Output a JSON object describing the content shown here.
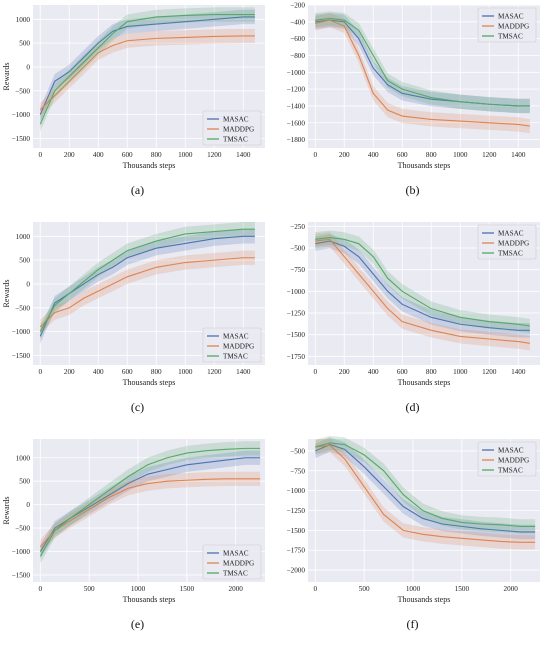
{
  "colors": {
    "MASAC": "#4c72b0",
    "MADDPG": "#dd8452",
    "TMSAC": "#55a868",
    "plot_bg": "#eaeaf2",
    "grid": "#ffffff"
  },
  "chart_data": [
    {
      "type": "line",
      "caption": "(a)",
      "xlabel": "Thousands steps",
      "ylabel": "Rewards",
      "xlim": [
        -50,
        1550
      ],
      "ylim": [
        -1700,
        1300
      ],
      "xticks": [
        0,
        200,
        400,
        600,
        800,
        1000,
        1200,
        1400
      ],
      "yticks": [
        -1500,
        -1000,
        -500,
        0,
        500,
        1000
      ],
      "legend": "bottom-right",
      "grid": true,
      "series": [
        {
          "name": "MASAC",
          "x": [
            0,
            100,
            200,
            300,
            400,
            500,
            600,
            800,
            1000,
            1200,
            1400,
            1480
          ],
          "y": [
            -1000,
            -300,
            -100,
            200,
            500,
            750,
            850,
            900,
            950,
            1000,
            1050,
            1050
          ]
        },
        {
          "name": "MADDPG",
          "x": [
            0,
            100,
            200,
            300,
            400,
            500,
            600,
            800,
            1000,
            1200,
            1400,
            1480
          ],
          "y": [
            -900,
            -600,
            -300,
            0,
            300,
            450,
            550,
            600,
            620,
            640,
            650,
            650
          ]
        },
        {
          "name": "TMSAC",
          "x": [
            0,
            100,
            200,
            300,
            400,
            500,
            600,
            800,
            1000,
            1200,
            1400,
            1480
          ],
          "y": [
            -1200,
            -500,
            -200,
            100,
            400,
            700,
            950,
            1050,
            1080,
            1100,
            1100,
            1100
          ]
        }
      ]
    },
    {
      "type": "line",
      "caption": "(b)",
      "xlabel": "Thousands steps",
      "ylabel": "",
      "xlim": [
        -50,
        1550
      ],
      "ylim": [
        -1900,
        -200
      ],
      "xticks": [
        0,
        200,
        400,
        600,
        800,
        1000,
        1200,
        1400
      ],
      "yticks": [
        -1800,
        -1600,
        -1400,
        -1200,
        -1000,
        -800,
        -600,
        -400,
        -200
      ],
      "legend": "top-right",
      "grid": true,
      "series": [
        {
          "name": "MASAC",
          "x": [
            0,
            100,
            200,
            300,
            400,
            500,
            600,
            800,
            1000,
            1200,
            1400,
            1480
          ],
          "y": [
            -400,
            -380,
            -400,
            -600,
            -950,
            -1150,
            -1250,
            -1320,
            -1350,
            -1380,
            -1400,
            -1400
          ]
        },
        {
          "name": "MADDPG",
          "x": [
            0,
            100,
            200,
            300,
            400,
            500,
            600,
            800,
            1000,
            1200,
            1400,
            1480
          ],
          "y": [
            -420,
            -380,
            -450,
            -800,
            -1250,
            -1450,
            -1520,
            -1560,
            -1580,
            -1600,
            -1620,
            -1640
          ]
        },
        {
          "name": "TMSAC",
          "x": [
            0,
            100,
            200,
            300,
            400,
            500,
            600,
            800,
            1000,
            1200,
            1400,
            1480
          ],
          "y": [
            -380,
            -360,
            -380,
            -500,
            -800,
            -1100,
            -1200,
            -1300,
            -1350,
            -1380,
            -1400,
            -1400
          ]
        }
      ]
    },
    {
      "type": "line",
      "caption": "(c)",
      "xlabel": "Thousands steps",
      "ylabel": "Rewards",
      "xlim": [
        -50,
        1550
      ],
      "ylim": [
        -1700,
        1300
      ],
      "xticks": [
        0,
        200,
        400,
        600,
        800,
        1000,
        1200,
        1400
      ],
      "yticks": [
        -1500,
        -1000,
        -500,
        0,
        500,
        1000
      ],
      "legend": "bottom-right",
      "grid": true,
      "series": [
        {
          "name": "MASAC",
          "x": [
            0,
            100,
            200,
            300,
            400,
            500,
            600,
            800,
            1000,
            1200,
            1400,
            1480
          ],
          "y": [
            -1100,
            -400,
            -200,
            0,
            200,
            350,
            550,
            750,
            850,
            950,
            1000,
            1000
          ]
        },
        {
          "name": "MADDPG",
          "x": [
            0,
            100,
            200,
            300,
            400,
            500,
            600,
            800,
            1000,
            1200,
            1400,
            1480
          ],
          "y": [
            -900,
            -600,
            -500,
            -300,
            -150,
            0,
            150,
            350,
            450,
            500,
            550,
            550
          ]
        },
        {
          "name": "TMSAC",
          "x": [
            0,
            100,
            200,
            300,
            400,
            500,
            600,
            800,
            1000,
            1200,
            1400,
            1480
          ],
          "y": [
            -1000,
            -450,
            -200,
            50,
            300,
            500,
            700,
            900,
            1050,
            1100,
            1150,
            1150
          ]
        }
      ]
    },
    {
      "type": "line",
      "caption": "(d)",
      "xlabel": "Thousands steps",
      "ylabel": "",
      "xlim": [
        -50,
        1550
      ],
      "ylim": [
        -1850,
        -200
      ],
      "xticks": [
        0,
        200,
        400,
        600,
        800,
        1000,
        1200,
        1400
      ],
      "yticks": [
        -1750,
        -1500,
        -1250,
        -1000,
        -750,
        -500,
        -250
      ],
      "legend": "top-right",
      "grid": true,
      "series": [
        {
          "name": "MASAC",
          "x": [
            0,
            100,
            200,
            300,
            400,
            500,
            600,
            800,
            1000,
            1200,
            1400,
            1480
          ],
          "y": [
            -450,
            -420,
            -480,
            -600,
            -800,
            -1000,
            -1150,
            -1300,
            -1380,
            -1420,
            -1450,
            -1450
          ]
        },
        {
          "name": "MADDPG",
          "x": [
            0,
            100,
            200,
            300,
            400,
            500,
            600,
            800,
            1000,
            1200,
            1400,
            1480
          ],
          "y": [
            -420,
            -400,
            -600,
            -800,
            -1000,
            -1200,
            -1350,
            -1450,
            -1520,
            -1550,
            -1580,
            -1600
          ]
        },
        {
          "name": "TMSAC",
          "x": [
            0,
            100,
            200,
            300,
            400,
            500,
            600,
            800,
            1000,
            1200,
            1400,
            1480
          ],
          "y": [
            -400,
            -380,
            -400,
            -450,
            -600,
            -850,
            -1000,
            -1200,
            -1300,
            -1350,
            -1380,
            -1400
          ]
        }
      ]
    },
    {
      "type": "line",
      "caption": "(e)",
      "xlabel": "Thousands steps",
      "ylabel": "Rewards",
      "xlim": [
        -75,
        2300
      ],
      "ylim": [
        -1650,
        1400
      ],
      "xticks": [
        0,
        500,
        1000,
        1500,
        2000
      ],
      "yticks": [
        -1500,
        -1000,
        -500,
        0,
        500,
        1000
      ],
      "legend": "bottom-right",
      "grid": true,
      "series": [
        {
          "name": "MASAC",
          "x": [
            0,
            150,
            300,
            500,
            700,
            900,
            1100,
            1300,
            1500,
            1700,
            1900,
            2100,
            2250
          ],
          "y": [
            -1000,
            -500,
            -300,
            -50,
            200,
            450,
            650,
            750,
            850,
            900,
            950,
            1000,
            1000
          ]
        },
        {
          "name": "MADDPG",
          "x": [
            0,
            150,
            300,
            500,
            700,
            900,
            1100,
            1300,
            1500,
            1700,
            1900,
            2100,
            2250
          ],
          "y": [
            -900,
            -550,
            -350,
            -100,
            150,
            350,
            450,
            500,
            520,
            540,
            550,
            550,
            550
          ]
        },
        {
          "name": "TMSAC",
          "x": [
            0,
            150,
            300,
            500,
            700,
            900,
            1100,
            1300,
            1500,
            1700,
            1900,
            2100,
            2250
          ],
          "y": [
            -1100,
            -550,
            -300,
            0,
            300,
            600,
            850,
            1000,
            1100,
            1150,
            1180,
            1200,
            1200
          ]
        }
      ]
    },
    {
      "type": "line",
      "caption": "(f)",
      "xlabel": "Thousands steps",
      "ylabel": "",
      "xlim": [
        -75,
        2300
      ],
      "ylim": [
        -2150,
        -350
      ],
      "xticks": [
        0,
        500,
        1000,
        1500,
        2000
      ],
      "yticks": [
        -2000,
        -1750,
        -1500,
        -1250,
        -1000,
        -750,
        -500
      ],
      "legend": "top-right",
      "grid": true,
      "series": [
        {
          "name": "MASAC",
          "x": [
            0,
            150,
            300,
            500,
            700,
            900,
            1100,
            1300,
            1500,
            1700,
            1900,
            2100,
            2250
          ],
          "y": [
            -500,
            -420,
            -480,
            -700,
            -950,
            -1200,
            -1350,
            -1420,
            -1450,
            -1480,
            -1500,
            -1520,
            -1520
          ]
        },
        {
          "name": "MADDPG",
          "x": [
            0,
            150,
            300,
            500,
            700,
            900,
            1100,
            1300,
            1500,
            1700,
            1900,
            2100,
            2250
          ],
          "y": [
            -450,
            -430,
            -600,
            -950,
            -1300,
            -1500,
            -1550,
            -1580,
            -1600,
            -1620,
            -1640,
            -1650,
            -1650
          ]
        },
        {
          "name": "TMSAC",
          "x": [
            0,
            150,
            300,
            500,
            700,
            900,
            1100,
            1300,
            1500,
            1700,
            1900,
            2100,
            2250
          ],
          "y": [
            -450,
            -400,
            -420,
            -550,
            -750,
            -1050,
            -1250,
            -1350,
            -1400,
            -1420,
            -1430,
            -1450,
            -1450
          ]
        }
      ]
    }
  ]
}
